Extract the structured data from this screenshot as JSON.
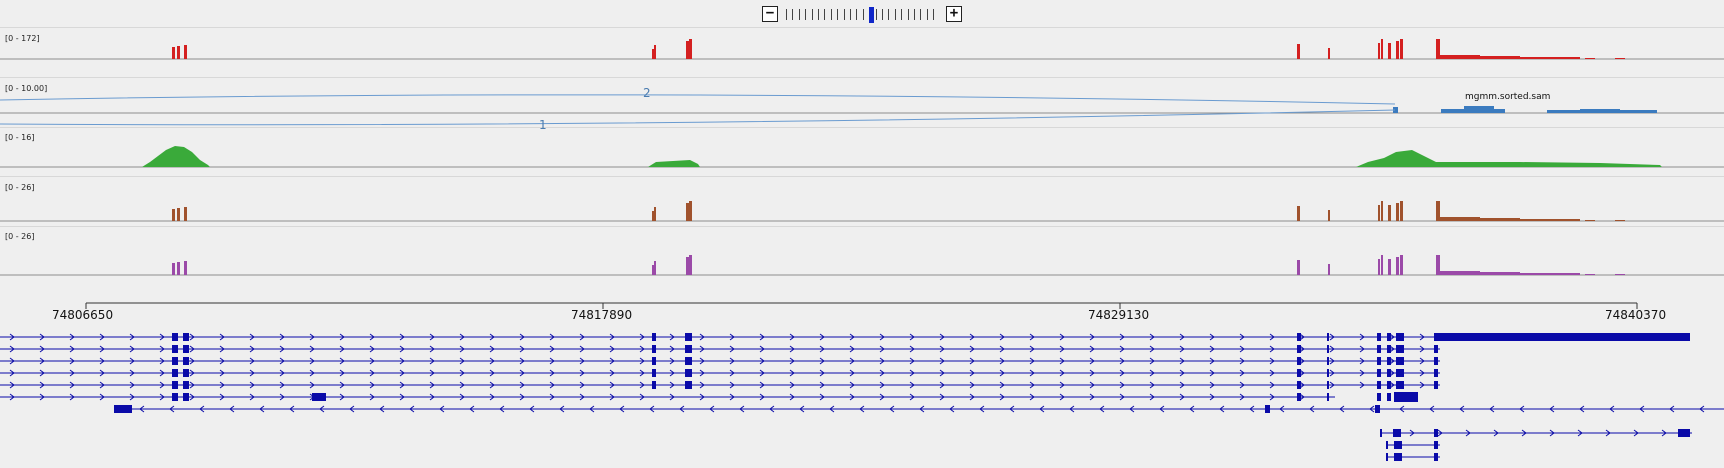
{
  "zoom": {
    "minus_label": "−",
    "plus_label": "+",
    "level_count": 24,
    "current_level": 13
  },
  "tracks": [
    {
      "range": "[0 - 172]",
      "color": "#d42020"
    },
    {
      "range": "[0 - 10.00]",
      "color": "#3b7bbf",
      "sample": "mgmm.sorted.sam",
      "junctions": [
        "2",
        "1"
      ]
    },
    {
      "range": "[0 - 16]",
      "color": "#3aaa3a"
    },
    {
      "range": "[0 - 26]",
      "color": "#a0522d"
    },
    {
      "range": "[0 - 26]",
      "color": "#9b4aa8"
    }
  ],
  "ruler": {
    "ticks": [
      "74806650",
      "74817890",
      "74829130",
      "74840370"
    ]
  },
  "colors": {
    "gene": "#0a0aa8",
    "background": "#efefef"
  }
}
